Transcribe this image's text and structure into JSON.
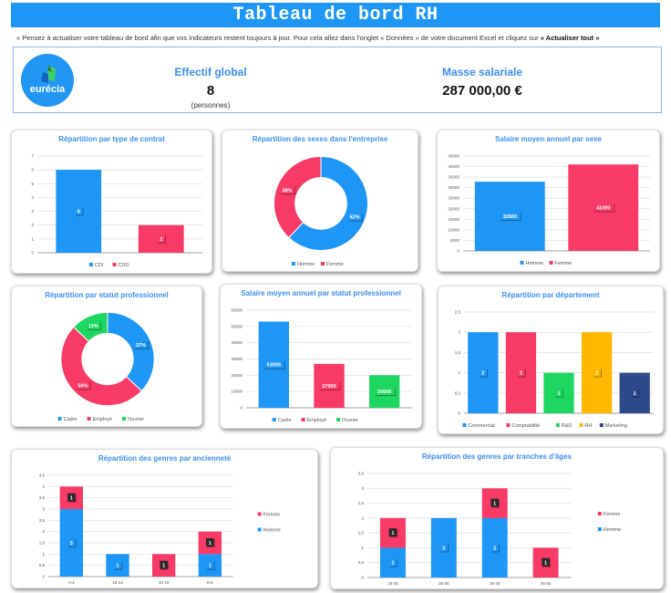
{
  "header": {
    "title": "Tableau de bord RH"
  },
  "note": {
    "text": "« Pensez à actualiser votre tableau de bord afin que vos indicateurs restent toujours à jour. Pour cela allez dans l'onglet « Données » de votre document Excel et cliquez sur ",
    "bold": "« Actualiser tout »"
  },
  "kpi": {
    "logo": "eurécia",
    "headcount_label": "Effectif global",
    "headcount_value": "8",
    "headcount_unit": "(personnes)",
    "payroll_label": "Masse salariale",
    "payroll_value": "287 000,00 €"
  },
  "colors": {
    "blue": "#1e96f5",
    "pink": "#f73a66",
    "green": "#1ed760",
    "yellow": "#ffb800",
    "navy": "#2c4a8a",
    "title": "#3d8ff0"
  },
  "chart_data": [
    {
      "type": "bar",
      "title": "Répartition par type de contrat",
      "categories": [
        "CDI",
        "CDD"
      ],
      "values": [
        6,
        2
      ],
      "colors": [
        "#1e96f5",
        "#f73a66"
      ],
      "ylim": [
        0,
        7
      ],
      "ystep": 1,
      "legend": "bottom",
      "grid": true
    },
    {
      "type": "pie",
      "donut": true,
      "title": "Répartition des sexes dans l'entreprise",
      "categories": [
        "Homme",
        "Femme"
      ],
      "values": [
        62,
        38
      ],
      "colors": [
        "#1e96f5",
        "#f73a66"
      ],
      "legend": "bottom"
    },
    {
      "type": "bar",
      "title": "Salaire moyen annuel par sexe",
      "categories": [
        "Homme",
        "Femme"
      ],
      "values": [
        32800,
        41000
      ],
      "colors": [
        "#1e96f5",
        "#f73a66"
      ],
      "ylim": [
        0,
        45000
      ],
      "ystep": 5000,
      "legend": "bottom",
      "grid": true
    },
    {
      "type": "pie",
      "donut": true,
      "title": "Répartition par statut professionnel",
      "categories": [
        "Cadre",
        "Employé",
        "Ouvrier"
      ],
      "values": [
        37,
        50,
        13
      ],
      "colors": [
        "#1e96f5",
        "#f73a66",
        "#1ed760"
      ],
      "legend": "bottom"
    },
    {
      "type": "bar",
      "title": "Salaire moyen annuel par statut professionnel",
      "categories": [
        "Cadre",
        "Employé",
        "Ouvrier"
      ],
      "values": [
        53000,
        27000,
        20000
      ],
      "colors": [
        "#1e96f5",
        "#f73a66",
        "#1ed760"
      ],
      "ylim": [
        0,
        60000
      ],
      "ystep": 10000,
      "legend": "bottom",
      "grid": true
    },
    {
      "type": "bar",
      "title": "Répartition par département",
      "categories": [
        "Commercial",
        "Comptabilité",
        "R&D",
        "RH",
        "Marketing"
      ],
      "values": [
        2,
        2,
        1,
        2,
        1
      ],
      "colors": [
        "#1e96f5",
        "#f73a66",
        "#1ed760",
        "#ffb800",
        "#2c4a8a"
      ],
      "ylim": [
        0,
        2.5
      ],
      "ystep": 0.5,
      "legend": "bottom",
      "grid": true
    },
    {
      "type": "bar",
      "stacked": true,
      "title": "Répartition des genres par ancienneté",
      "categories": [
        "0-4",
        "10-14",
        "15-19",
        "5-9"
      ],
      "series": [
        {
          "name": "Homme",
          "values": [
            3,
            1,
            0,
            1
          ],
          "color": "#1e96f5"
        },
        {
          "name": "Femme",
          "values": [
            1,
            0,
            1,
            1
          ],
          "color": "#f73a66"
        }
      ],
      "ylim": [
        0,
        4.5
      ],
      "ystep": 0.5,
      "legend": "right",
      "grid": true
    },
    {
      "type": "bar",
      "stacked": true,
      "title": "Répartition des genres par tranches d'âges",
      "categories": [
        "18-25",
        "26-35",
        "36-45",
        "46-55"
      ],
      "series": [
        {
          "name": "Homme",
          "values": [
            1,
            2,
            2,
            0
          ],
          "color": "#1e96f5"
        },
        {
          "name": "Femme",
          "values": [
            1,
            0,
            1,
            1
          ],
          "color": "#f73a66"
        }
      ],
      "ylim": [
        0,
        3.5
      ],
      "ystep": 0.5,
      "legend": "right",
      "grid": true
    }
  ]
}
